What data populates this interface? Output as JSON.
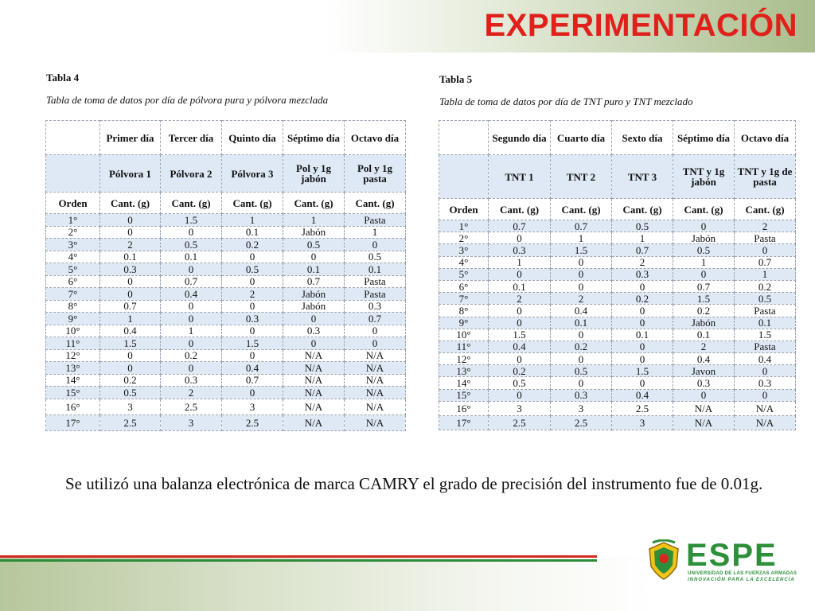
{
  "title": "EXPERIMENTACIÓN",
  "tabla4": {
    "label": "Tabla 4",
    "caption": "Tabla de toma de datos por día de pólvora pura y pólvora mezclada",
    "days": [
      "Primer día",
      "Tercer día",
      "Quinto día",
      "Séptimo día",
      "Octavo día"
    ],
    "materials": [
      "Pólvora 1",
      "Pólvora 2",
      "Pólvora 3",
      "Pol y 1g jabón",
      "Pol y 1g pasta"
    ],
    "order_label": "Orden",
    "unit": "Cant. (g)",
    "rows": [
      [
        "1°",
        "0",
        "1.5",
        "1",
        "1",
        "Pasta"
      ],
      [
        "2°",
        "0",
        "0",
        "0.1",
        "Jabón",
        "1"
      ],
      [
        "3°",
        "2",
        "0.5",
        "0.2",
        "0.5",
        "0"
      ],
      [
        "4°",
        "0.1",
        "0.1",
        "0",
        "0",
        "0.5"
      ],
      [
        "5°",
        "0.3",
        "0",
        "0.5",
        "0.1",
        "0.1"
      ],
      [
        "6°",
        "0",
        "0.7",
        "0",
        "0.7",
        "Pasta"
      ],
      [
        "7°",
        "0",
        "0.4",
        "2",
        "Jabón",
        "Pasta"
      ],
      [
        "8°",
        "0.7",
        "0",
        "0",
        "Jabón",
        "0.3"
      ],
      [
        "9°",
        "1",
        "0",
        "0.3",
        "0",
        "0.7"
      ],
      [
        "10°",
        "0.4",
        "1",
        "0",
        "0.3",
        "0"
      ],
      [
        "11°",
        "1.5",
        "0",
        "1.5",
        "0",
        "0"
      ],
      [
        "12°",
        "0",
        "0.2",
        "0",
        "N/A",
        "N/A"
      ],
      [
        "13°",
        "0",
        "0",
        "0.4",
        "N/A",
        "N/A"
      ],
      [
        "14°",
        "0.2",
        "0.3",
        "0.7",
        "N/A",
        "N/A"
      ],
      [
        "15°",
        "0.5",
        "2",
        "0",
        "N/A",
        "N/A"
      ],
      [
        "16°",
        "3",
        "2.5",
        "3",
        "N/A",
        "N/A"
      ],
      [
        "17°",
        "2.5",
        "3",
        "2.5",
        "N/A",
        "N/A"
      ]
    ]
  },
  "tabla5": {
    "label": "Tabla 5",
    "caption": "Tabla de toma de datos por día de TNT puro y TNT mezclado",
    "days": [
      "Segundo día",
      "Cuarto día",
      "Sexto día",
      "Séptimo día",
      "Octavo día"
    ],
    "materials": [
      "TNT 1",
      "TNT 2",
      "TNT 3",
      "TNT y 1g jabón",
      "TNT y 1g de pasta"
    ],
    "order_label": "Orden",
    "unit": "Cant. (g)",
    "rows": [
      [
        "1°",
        "0.7",
        "0.7",
        "0.5",
        "0",
        "2"
      ],
      [
        "2°",
        "0",
        "1",
        "1",
        "Jabón",
        "Pasta"
      ],
      [
        "3°",
        "0.3",
        "1.5",
        "0.7",
        "0.5",
        "0"
      ],
      [
        "4°",
        "1",
        "0",
        "2",
        "1",
        "0.7"
      ],
      [
        "5°",
        "0",
        "0",
        "0.3",
        "0",
        "1"
      ],
      [
        "6°",
        "0.1",
        "0",
        "0",
        "0.7",
        "0.2"
      ],
      [
        "7°",
        "2",
        "2",
        "0.2",
        "1.5",
        "0.5"
      ],
      [
        "8°",
        "0",
        "0.4",
        "0",
        "0.2",
        "Pasta"
      ],
      [
        "9°",
        "0",
        "0.1",
        "0",
        "Jabón",
        "0.1"
      ],
      [
        "10°",
        "1.5",
        "0",
        "0.1",
        "0.1",
        "1.5"
      ],
      [
        "11°",
        "0.4",
        "0.2",
        "0",
        "2",
        "Pasta"
      ],
      [
        "12°",
        "0",
        "0",
        "0",
        "0.4",
        "0.4"
      ],
      [
        "13°",
        "0.2",
        "0.5",
        "1.5",
        "Javon",
        "0"
      ],
      [
        "14°",
        "0.5",
        "0",
        "0",
        "0.3",
        "0.3"
      ],
      [
        "15°",
        "0",
        "0.3",
        "0.4",
        "0",
        "0"
      ],
      [
        "16°",
        "3",
        "3",
        "2.5",
        "N/A",
        "N/A"
      ],
      [
        "17°",
        "2.5",
        "2.5",
        "3",
        "N/A",
        "N/A"
      ]
    ]
  },
  "footer": {
    "text": "Se utilizó una balanza electrónica de marca CAMRY el grado de precisión del instrumento fue de 0.01g."
  },
  "logo": {
    "name": "ESPE",
    "subtitle": "UNIVERSIDAD DE LAS FUERZAS ARMADAS",
    "tagline": "INNOVACIÓN PARA LA EXCELENCIA"
  },
  "colors": {
    "title": "#e0211b",
    "header_fill": "#dfe9f6",
    "logo_green": "#2d8f3a",
    "stripe_red": "#d32a20",
    "stripe_green": "#2e8b3a"
  }
}
